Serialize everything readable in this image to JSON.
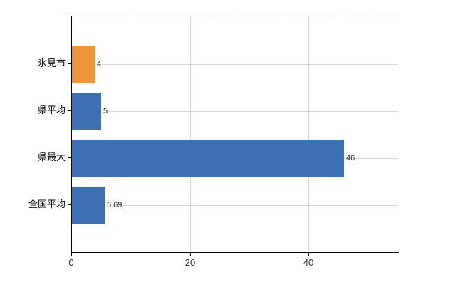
{
  "chart_data": {
    "type": "bar",
    "orientation": "horizontal",
    "title": "",
    "xlabel": "",
    "ylabel": "",
    "categories": [
      "氷見市",
      "県平均",
      "県最大",
      "全国平均"
    ],
    "values": [
      4,
      5,
      46,
      5.69
    ],
    "value_labels": [
      "4",
      "5",
      "46",
      "5.69"
    ],
    "bar_colors": [
      "#f0943c",
      "#3d70b2",
      "#3d70b2",
      "#3d70b2"
    ],
    "xlim": [
      0,
      55
    ],
    "x_ticks": [
      0,
      20,
      40
    ],
    "x_tick_labels": [
      "0",
      "20",
      "40"
    ],
    "grid": "on",
    "legend": "none"
  },
  "colors": {
    "bar_blue": "#3d70b2",
    "bar_orange": "#f0943c",
    "gridline": "#d6d6d2",
    "axis": "#000000",
    "text": "#222222"
  }
}
